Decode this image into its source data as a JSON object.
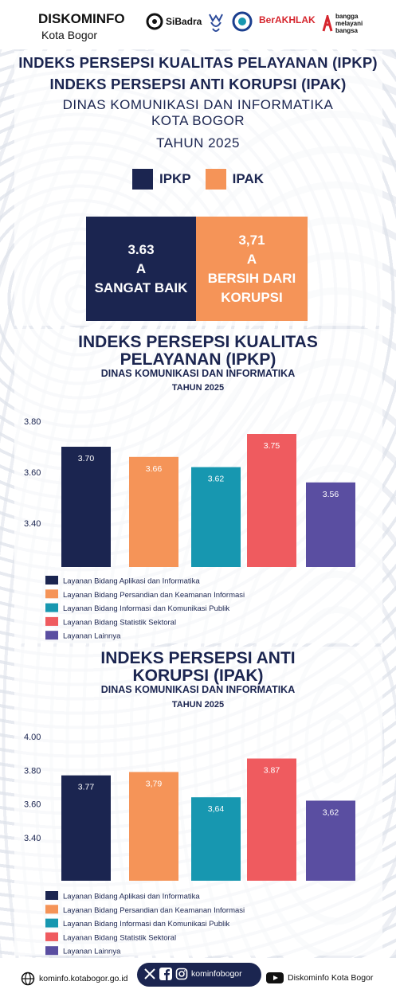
{
  "header": {
    "brand_title": "DISKOMINFO",
    "brand_sub": "Kota Bogor",
    "logos": [
      "SiBadra",
      "Bogor",
      "BIGO",
      "BerAKHLAK",
      "bangga melayani bangsa"
    ]
  },
  "intro": {
    "line1": "INDEKS PERSEPSI KUALITAS PELAYANAN (IPKP)",
    "line2": "INDEKS PERSEPSI ANTI KORUPSI (IPAK)",
    "line3": "DINAS KOMUNIKASI DAN INFORMATIKA",
    "line4": "KOTA BOGOR",
    "year": "TAHUN 2025",
    "legend": [
      {
        "label": "IPKP",
        "color": "#1b2550"
      },
      {
        "label": "IPAK",
        "color": "#f59458"
      }
    ],
    "scores": [
      {
        "value": "3.63",
        "grade": "A",
        "desc1": "SANGAT BAIK",
        "desc2": "",
        "color": "#1b2550"
      },
      {
        "value": "3,71",
        "grade": "A",
        "desc1": "BERSIH DARI",
        "desc2": "KORUPSI",
        "color": "#f59458"
      }
    ]
  },
  "chart1": {
    "title1": "INDEKS PERSEPSI KUALITAS",
    "title2": "PELAYANAN (IPKP)",
    "subtitle": "DINAS KOMUNIKASI DAN INFORMATIKA",
    "year": "TAHUN 2025"
  },
  "chart2": {
    "title1": "INDEKS PERSEPSI ANTI",
    "title2": "KORUPSI (IPAK)",
    "subtitle": "DINAS KOMUNIKASI DAN INFORMATIKA",
    "year": "TAHUN 2025"
  },
  "chart_data": [
    {
      "type": "bar",
      "categories": [
        "Layanan Bidang Aplikasi dan Informatika",
        "Layanan Bidang Persandian dan Keamanan Informasi",
        "Layanan Bidang Informasi dan Komunikasi Publik",
        "Layanan Bidang Statistik Sektoral",
        "Layanan Lainnya"
      ],
      "values": [
        3.7,
        3.66,
        3.62,
        3.75,
        3.56
      ],
      "value_labels": [
        "3.70",
        "3.66",
        "3.62",
        "3.75",
        "3.56"
      ],
      "colors": [
        "#1b2550",
        "#f59458",
        "#1797b0",
        "#ef5b5f",
        "#5a4ea1"
      ],
      "yticks": [
        "3.80",
        "3.60",
        "3.40"
      ],
      "title": "INDEKS PERSEPSI KUALITAS PELAYANAN (IPKP)",
      "xlabel": "",
      "ylabel": ""
    },
    {
      "type": "bar",
      "categories": [
        "Layanan Bidang Aplikasi dan Informatika",
        "Layanan Bidang Persandian dan Keamanan Informasi",
        "Layanan Bidang Informasi dan Komunikasi Publik",
        "Layanan Bidang Statistik Sektoral",
        "Layanan Lainnya"
      ],
      "values": [
        3.77,
        3.79,
        3.64,
        3.87,
        3.62
      ],
      "value_labels": [
        "3.77",
        "3,79",
        "3,64",
        "3.87",
        "3,62"
      ],
      "colors": [
        "#1b2550",
        "#f59458",
        "#1797b0",
        "#ef5b5f",
        "#5a4ea1"
      ],
      "yticks": [
        "4.00",
        "3.80",
        "3.60",
        "3.40"
      ],
      "title": "INDEKS PERSEPSI ANTI KORUPSI (IPAK)",
      "xlabel": "",
      "ylabel": ""
    }
  ],
  "footer": {
    "website": "kominfo.kotabogor.go.id",
    "social_handle": "kominfobogor",
    "youtube": "Diskominfo Kota Bogor"
  }
}
